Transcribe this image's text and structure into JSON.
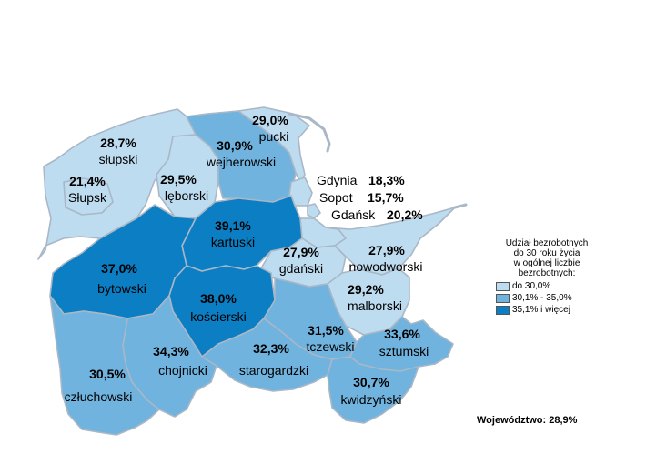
{
  "colors": {
    "low": "#bddcf0",
    "mid": "#6fb3de",
    "high": "#0b7ec4"
  },
  "districts": {
    "slupski": {
      "value": "28,7%",
      "name": "słupski",
      "class": "low"
    },
    "slupsk": {
      "value": "21,4%",
      "name": "Słupsk",
      "class": "low"
    },
    "leborski": {
      "value": "29,5%",
      "name": "lęborski",
      "class": "low"
    },
    "wejherowski": {
      "value": "30,9%",
      "name": "wejherowski",
      "class": "mid"
    },
    "pucki": {
      "value": "29,0%",
      "name": "pucki",
      "class": "low"
    },
    "kartuski": {
      "value": "39,1%",
      "name": "kartuski",
      "class": "high"
    },
    "gdanski": {
      "value": "27,9%",
      "name": "gdański",
      "class": "low"
    },
    "nowodworski": {
      "value": "27,9%",
      "name": "nowodworski",
      "class": "low"
    },
    "bytowski": {
      "value": "37,0%",
      "name": "bytowski",
      "class": "high"
    },
    "koscierski": {
      "value": "38,0%",
      "name": "kościerski",
      "class": "high"
    },
    "malborski": {
      "value": "29,2%",
      "name": "malborski",
      "class": "low"
    },
    "tczewski": {
      "value": "31,5%",
      "name": "tczewski",
      "class": "mid"
    },
    "sztumski": {
      "value": "33,6%",
      "name": "sztumski",
      "class": "mid"
    },
    "chojnicki": {
      "value": "34,3%",
      "name": "chojnicki",
      "class": "mid"
    },
    "starogardzki": {
      "value": "32,3%",
      "name": "starogardzki",
      "class": "mid"
    },
    "czluchowski": {
      "value": "30,5%",
      "name": "człuchowski",
      "class": "mid"
    },
    "kwidzynski": {
      "value": "30,7%",
      "name": "kwidzyński",
      "class": "mid"
    }
  },
  "cities": {
    "gdynia": {
      "name": "Gdynia",
      "value": "18,3%"
    },
    "sopot": {
      "name": "Sopot",
      "value": "15,7%"
    },
    "gdansk": {
      "name": "Gdańsk",
      "value": "20,2%"
    }
  },
  "legend": {
    "title": [
      "Udział bezrobotnych",
      "do 30 roku życia",
      "w ogólnej liczbie",
      "bezrobotnych:"
    ],
    "items": [
      {
        "label": "do 30,0%",
        "class": "low"
      },
      {
        "label": "30,1% - 35,0%",
        "class": "mid"
      },
      {
        "label": "35,1% i więcej",
        "class": "high"
      }
    ]
  },
  "voivodeship": "Województwo: 28,9%"
}
